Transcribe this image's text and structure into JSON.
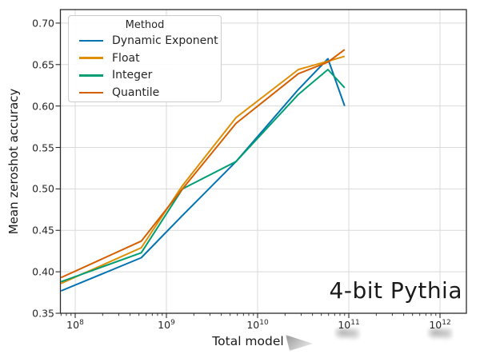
{
  "chart_data": {
    "type": "line",
    "title": "",
    "annotation": "4-bit Pythia",
    "xlabel": "Total model",
    "ylabel": "Mean zeroshot accuracy",
    "grid": true,
    "legend": {
      "title": "Method",
      "position": "upper left"
    },
    "x_axis": {
      "scale": "log",
      "tick_base": "10",
      "tick_exponents": [
        8,
        9,
        10,
        11,
        12
      ]
    },
    "y_ticks": [
      0.35,
      0.4,
      0.45,
      0.5,
      0.55,
      0.6,
      0.65,
      0.7
    ],
    "ylim": [
      0.35,
      0.718
    ],
    "xlim_log10": [
      7.84,
      12.29
    ],
    "x": [
      70000000.0,
      530000000.0,
      1500000000.0,
      5800000000.0,
      28000000000.0,
      59000000000.0,
      90000000000.0
    ],
    "series": [
      {
        "name": "Dynamic Exponent",
        "color": "#0173b2",
        "values": [
          0.377,
          0.417,
          0.468,
          0.533,
          0.62,
          0.657,
          0.6
        ]
      },
      {
        "name": "Float",
        "color": "#de8f05",
        "values": [
          0.386,
          0.429,
          0.504,
          0.586,
          0.644,
          0.654,
          0.66
        ]
      },
      {
        "name": "Integer",
        "color": "#029e73",
        "values": [
          0.388,
          0.423,
          0.5,
          0.533,
          0.614,
          0.644,
          0.622
        ]
      },
      {
        "name": "Quantile",
        "color": "#d55e00",
        "values": [
          0.393,
          0.437,
          0.5,
          0.579,
          0.639,
          0.653,
          0.668
        ]
      }
    ],
    "colors": {
      "gridline": "#d9d9d9",
      "spine": "#2b2b2b",
      "text": "#262626"
    }
  }
}
